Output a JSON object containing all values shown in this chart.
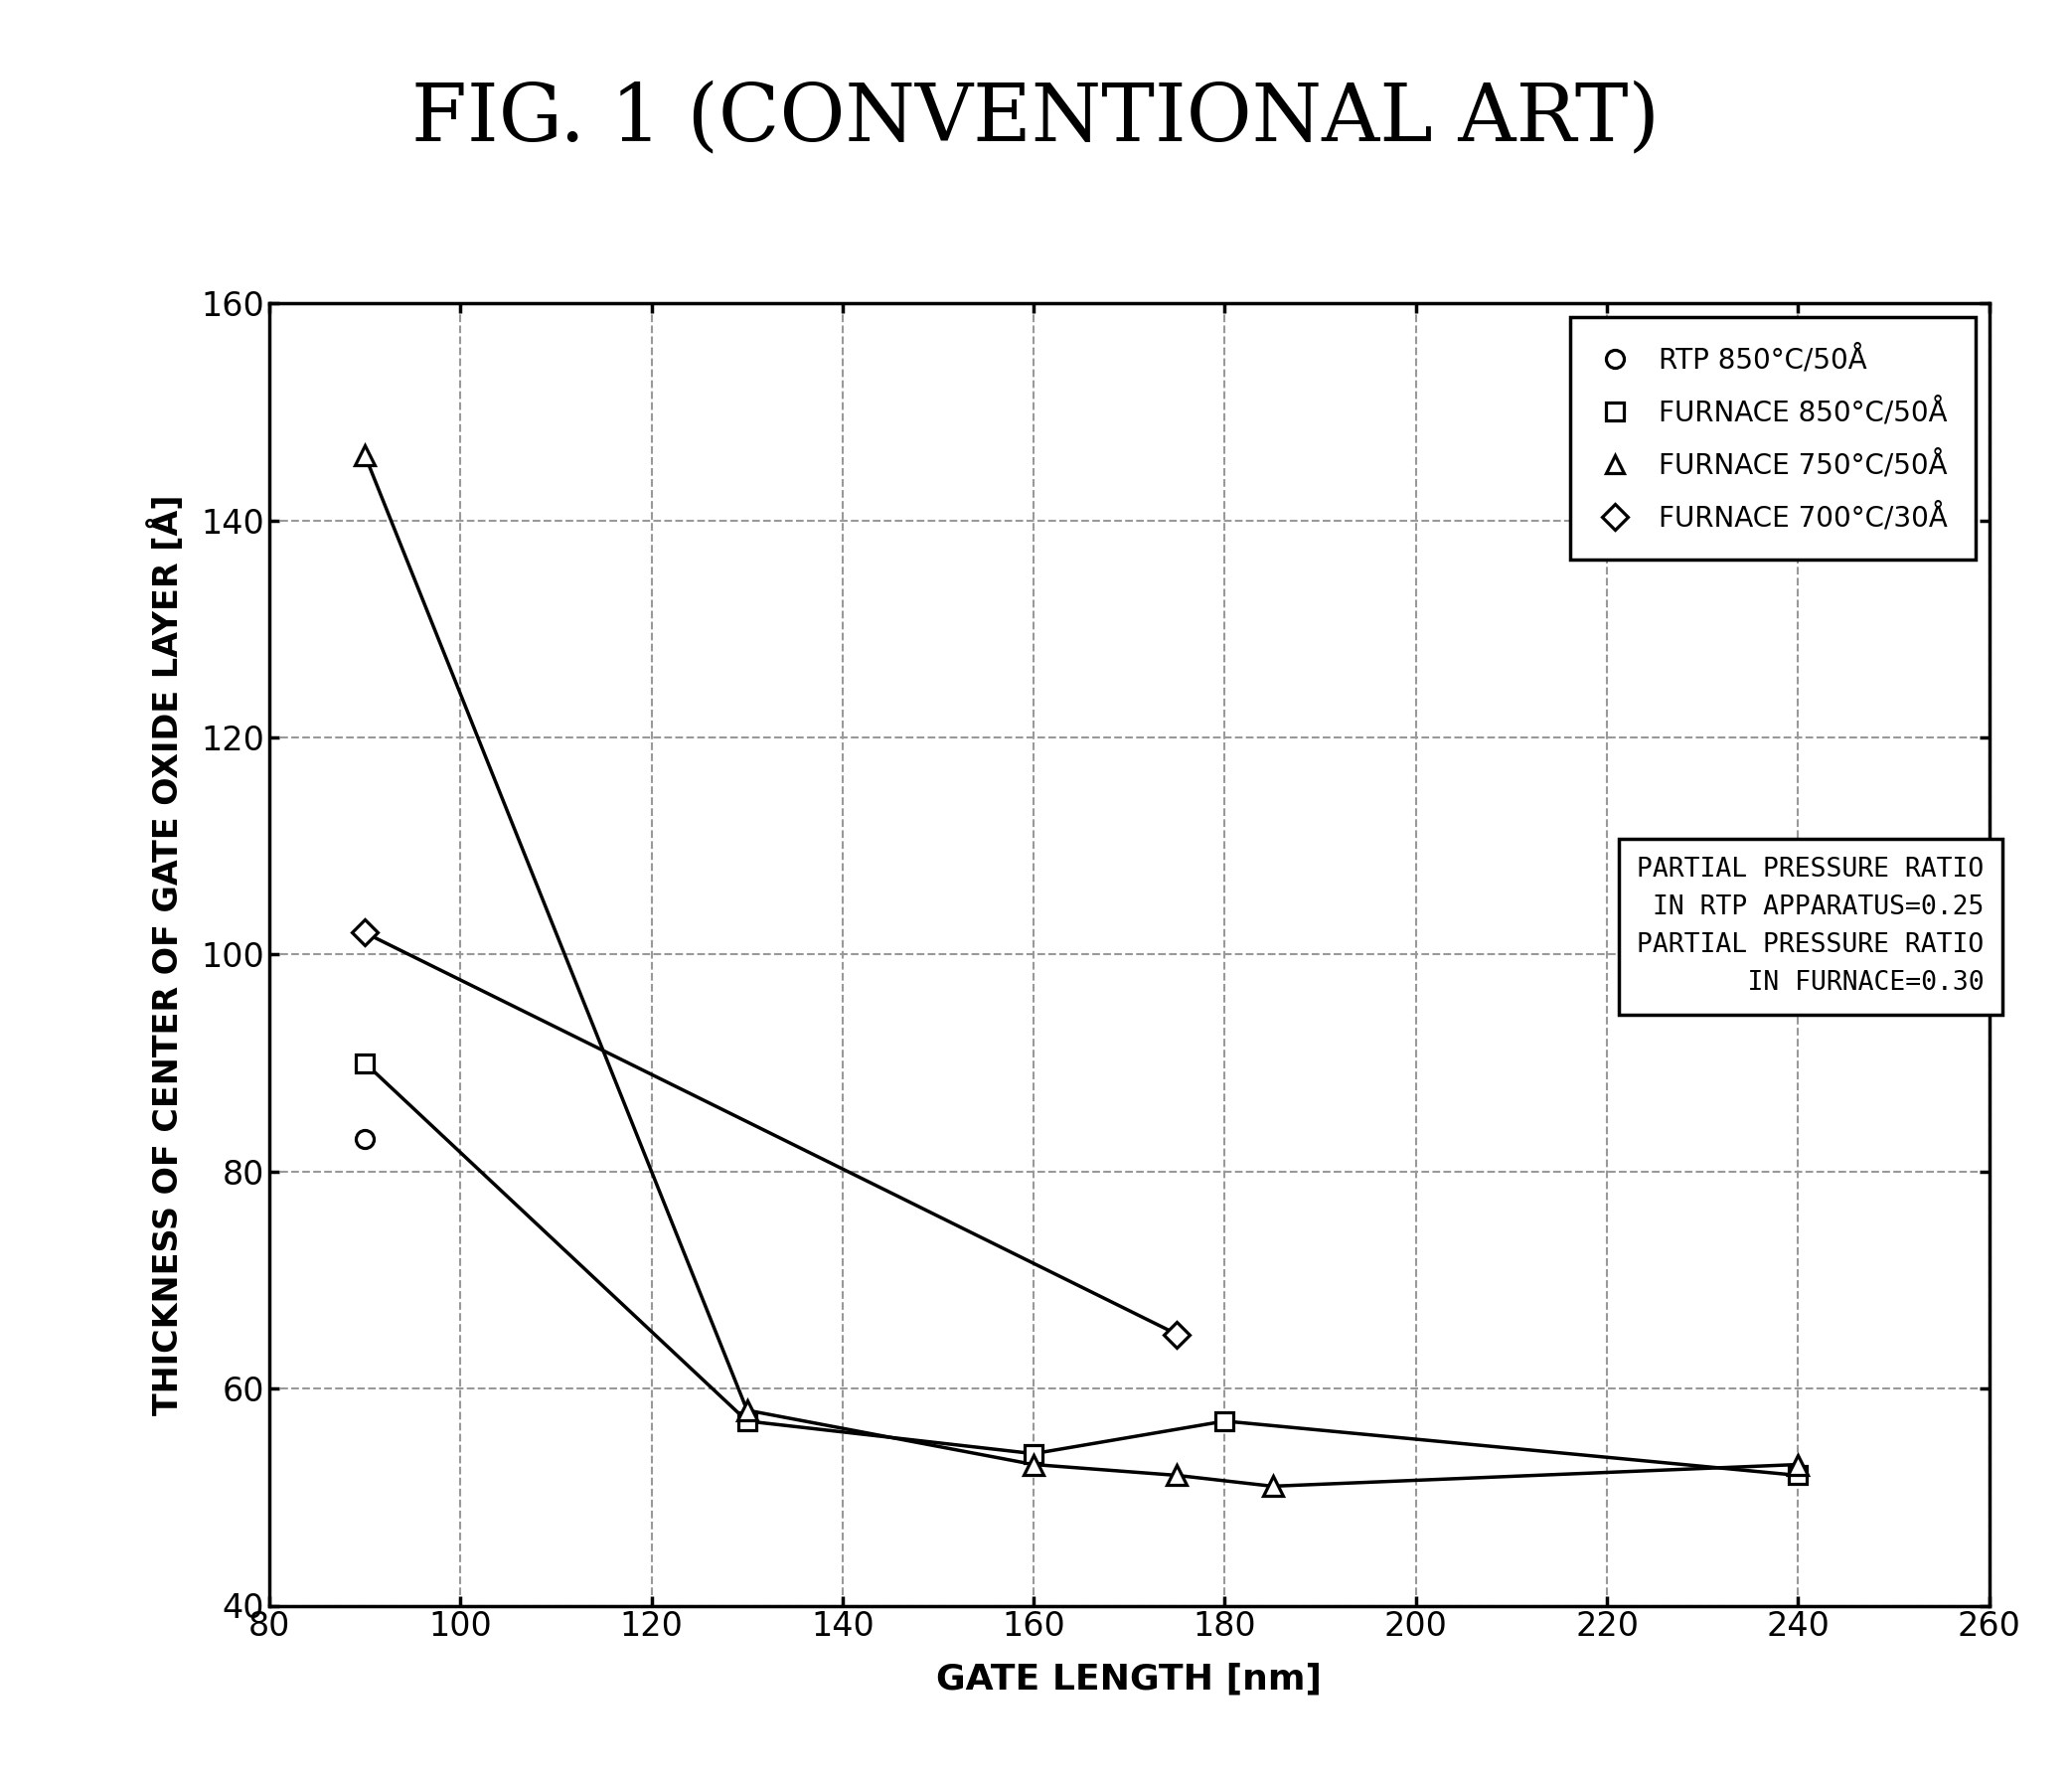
{
  "title": "FIG. 1 (CONVENTIONAL ART)",
  "xlabel": "GATE LENGTH [nm]",
  "ylabel": "THICKNESS OF CENTER OF GATE OXIDE LAYER [Å]",
  "xlim": [
    80,
    260
  ],
  "ylim": [
    40,
    160
  ],
  "xticks": [
    80,
    100,
    120,
    140,
    160,
    180,
    200,
    220,
    240,
    260
  ],
  "yticks": [
    40,
    60,
    80,
    100,
    120,
    140,
    160
  ],
  "series": [
    {
      "label": "RTP 850°C/50Å",
      "marker": "o",
      "markersize": 13,
      "line": false,
      "x": [
        90
      ],
      "y": [
        83
      ]
    },
    {
      "label": "FURNACE 850°C/50Å",
      "marker": "s",
      "markersize": 13,
      "line": true,
      "x": [
        90,
        130,
        160,
        180,
        240
      ],
      "y": [
        90,
        57,
        54,
        57,
        52
      ]
    },
    {
      "label": "FURNACE 750°C/50Å",
      "marker": "^",
      "markersize": 14,
      "line": true,
      "x": [
        90,
        130,
        160,
        175,
        185,
        240
      ],
      "y": [
        146,
        58,
        53,
        52,
        51,
        53
      ]
    },
    {
      "label": "FURNACE 700°C/30Å",
      "marker": "D",
      "markersize": 13,
      "line": true,
      "x": [
        90,
        175
      ],
      "y": [
        102,
        65
      ]
    }
  ],
  "legend_markers": [
    "o",
    "s",
    "^",
    "D"
  ],
  "legend_labels": [
    "RTP 850°C/50Å",
    "FURNACE 850°C/50Å",
    "FURNACE 750°C/50Å",
    "FURNACE 700°C/30Å"
  ],
  "annotation": "PARTIAL PRESSURE RATIO\n IN RTP APPARATUS=0.25\nPARTIAL PRESSURE RATIO\n       IN FURNACE=0.30",
  "background_color": "#ffffff",
  "grid_color": "#999999",
  "title_fontsize": 58,
  "axis_label_fontsize": 26,
  "tick_fontsize": 24,
  "legend_fontsize": 20,
  "annotation_fontsize": 19
}
